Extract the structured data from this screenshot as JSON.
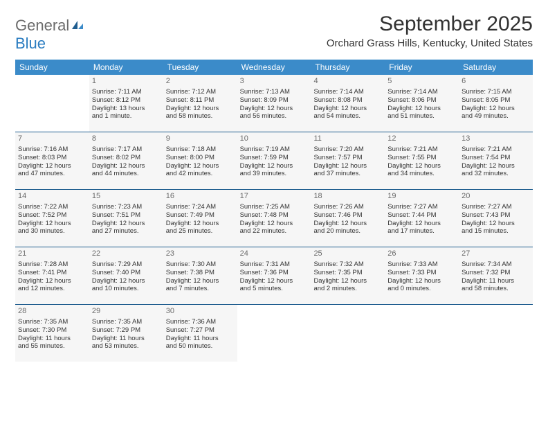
{
  "logo": {
    "word1": "General",
    "word2": "Blue"
  },
  "title": "September 2025",
  "location": "Orchard Grass Hills, Kentucky, United States",
  "colors": {
    "header_bar": "#3b8bc9",
    "row_divider": "#1f5d8f",
    "cell_bg": "#f6f6f6",
    "text": "#333333",
    "logo_gray": "#6b6b6b",
    "logo_blue": "#2a7cc0"
  },
  "dow": [
    "Sunday",
    "Monday",
    "Tuesday",
    "Wednesday",
    "Thursday",
    "Friday",
    "Saturday"
  ],
  "weeks": [
    [
      null,
      {
        "n": "1",
        "sr": "Sunrise: 7:11 AM",
        "ss": "Sunset: 8:12 PM",
        "d1": "Daylight: 13 hours",
        "d2": "and 1 minute."
      },
      {
        "n": "2",
        "sr": "Sunrise: 7:12 AM",
        "ss": "Sunset: 8:11 PM",
        "d1": "Daylight: 12 hours",
        "d2": "and 58 minutes."
      },
      {
        "n": "3",
        "sr": "Sunrise: 7:13 AM",
        "ss": "Sunset: 8:09 PM",
        "d1": "Daylight: 12 hours",
        "d2": "and 56 minutes."
      },
      {
        "n": "4",
        "sr": "Sunrise: 7:14 AM",
        "ss": "Sunset: 8:08 PM",
        "d1": "Daylight: 12 hours",
        "d2": "and 54 minutes."
      },
      {
        "n": "5",
        "sr": "Sunrise: 7:14 AM",
        "ss": "Sunset: 8:06 PM",
        "d1": "Daylight: 12 hours",
        "d2": "and 51 minutes."
      },
      {
        "n": "6",
        "sr": "Sunrise: 7:15 AM",
        "ss": "Sunset: 8:05 PM",
        "d1": "Daylight: 12 hours",
        "d2": "and 49 minutes."
      }
    ],
    [
      {
        "n": "7",
        "sr": "Sunrise: 7:16 AM",
        "ss": "Sunset: 8:03 PM",
        "d1": "Daylight: 12 hours",
        "d2": "and 47 minutes."
      },
      {
        "n": "8",
        "sr": "Sunrise: 7:17 AM",
        "ss": "Sunset: 8:02 PM",
        "d1": "Daylight: 12 hours",
        "d2": "and 44 minutes."
      },
      {
        "n": "9",
        "sr": "Sunrise: 7:18 AM",
        "ss": "Sunset: 8:00 PM",
        "d1": "Daylight: 12 hours",
        "d2": "and 42 minutes."
      },
      {
        "n": "10",
        "sr": "Sunrise: 7:19 AM",
        "ss": "Sunset: 7:59 PM",
        "d1": "Daylight: 12 hours",
        "d2": "and 39 minutes."
      },
      {
        "n": "11",
        "sr": "Sunrise: 7:20 AM",
        "ss": "Sunset: 7:57 PM",
        "d1": "Daylight: 12 hours",
        "d2": "and 37 minutes."
      },
      {
        "n": "12",
        "sr": "Sunrise: 7:21 AM",
        "ss": "Sunset: 7:55 PM",
        "d1": "Daylight: 12 hours",
        "d2": "and 34 minutes."
      },
      {
        "n": "13",
        "sr": "Sunrise: 7:21 AM",
        "ss": "Sunset: 7:54 PM",
        "d1": "Daylight: 12 hours",
        "d2": "and 32 minutes."
      }
    ],
    [
      {
        "n": "14",
        "sr": "Sunrise: 7:22 AM",
        "ss": "Sunset: 7:52 PM",
        "d1": "Daylight: 12 hours",
        "d2": "and 30 minutes."
      },
      {
        "n": "15",
        "sr": "Sunrise: 7:23 AM",
        "ss": "Sunset: 7:51 PM",
        "d1": "Daylight: 12 hours",
        "d2": "and 27 minutes."
      },
      {
        "n": "16",
        "sr": "Sunrise: 7:24 AM",
        "ss": "Sunset: 7:49 PM",
        "d1": "Daylight: 12 hours",
        "d2": "and 25 minutes."
      },
      {
        "n": "17",
        "sr": "Sunrise: 7:25 AM",
        "ss": "Sunset: 7:48 PM",
        "d1": "Daylight: 12 hours",
        "d2": "and 22 minutes."
      },
      {
        "n": "18",
        "sr": "Sunrise: 7:26 AM",
        "ss": "Sunset: 7:46 PM",
        "d1": "Daylight: 12 hours",
        "d2": "and 20 minutes."
      },
      {
        "n": "19",
        "sr": "Sunrise: 7:27 AM",
        "ss": "Sunset: 7:44 PM",
        "d1": "Daylight: 12 hours",
        "d2": "and 17 minutes."
      },
      {
        "n": "20",
        "sr": "Sunrise: 7:27 AM",
        "ss": "Sunset: 7:43 PM",
        "d1": "Daylight: 12 hours",
        "d2": "and 15 minutes."
      }
    ],
    [
      {
        "n": "21",
        "sr": "Sunrise: 7:28 AM",
        "ss": "Sunset: 7:41 PM",
        "d1": "Daylight: 12 hours",
        "d2": "and 12 minutes."
      },
      {
        "n": "22",
        "sr": "Sunrise: 7:29 AM",
        "ss": "Sunset: 7:40 PM",
        "d1": "Daylight: 12 hours",
        "d2": "and 10 minutes."
      },
      {
        "n": "23",
        "sr": "Sunrise: 7:30 AM",
        "ss": "Sunset: 7:38 PM",
        "d1": "Daylight: 12 hours",
        "d2": "and 7 minutes."
      },
      {
        "n": "24",
        "sr": "Sunrise: 7:31 AM",
        "ss": "Sunset: 7:36 PM",
        "d1": "Daylight: 12 hours",
        "d2": "and 5 minutes."
      },
      {
        "n": "25",
        "sr": "Sunrise: 7:32 AM",
        "ss": "Sunset: 7:35 PM",
        "d1": "Daylight: 12 hours",
        "d2": "and 2 minutes."
      },
      {
        "n": "26",
        "sr": "Sunrise: 7:33 AM",
        "ss": "Sunset: 7:33 PM",
        "d1": "Daylight: 12 hours",
        "d2": "and 0 minutes."
      },
      {
        "n": "27",
        "sr": "Sunrise: 7:34 AM",
        "ss": "Sunset: 7:32 PM",
        "d1": "Daylight: 11 hours",
        "d2": "and 58 minutes."
      }
    ],
    [
      {
        "n": "28",
        "sr": "Sunrise: 7:35 AM",
        "ss": "Sunset: 7:30 PM",
        "d1": "Daylight: 11 hours",
        "d2": "and 55 minutes."
      },
      {
        "n": "29",
        "sr": "Sunrise: 7:35 AM",
        "ss": "Sunset: 7:29 PM",
        "d1": "Daylight: 11 hours",
        "d2": "and 53 minutes."
      },
      {
        "n": "30",
        "sr": "Sunrise: 7:36 AM",
        "ss": "Sunset: 7:27 PM",
        "d1": "Daylight: 11 hours",
        "d2": "and 50 minutes."
      },
      null,
      null,
      null,
      null
    ]
  ]
}
